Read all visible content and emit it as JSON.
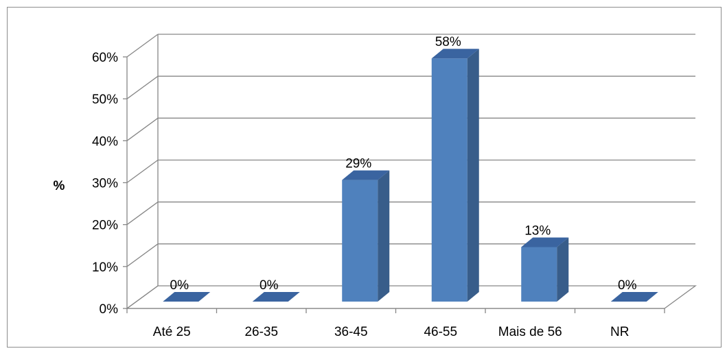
{
  "chart_data": {
    "type": "bar",
    "style": "3d-column",
    "categories": [
      "Até 25",
      "26-35",
      "36-45",
      "46-55",
      "Mais de 56",
      "NR"
    ],
    "values": [
      0,
      0,
      29,
      58,
      13,
      0
    ],
    "data_labels": [
      "0%",
      "0%",
      "29%",
      "58%",
      "13%",
      "0%"
    ],
    "ylabel": "%",
    "ylim": [
      0,
      60
    ],
    "yticks": [
      0,
      10,
      20,
      30,
      40,
      50,
      60
    ],
    "ytick_labels": [
      "0%",
      "10%",
      "20%",
      "30%",
      "40%",
      "50%",
      "60%"
    ],
    "grid": true,
    "legend": "none",
    "colors": {
      "bar_front": "#4f81bd",
      "bar_side": "#385d8a",
      "bar_top": "#3a64a0",
      "grid": "#868686"
    }
  }
}
